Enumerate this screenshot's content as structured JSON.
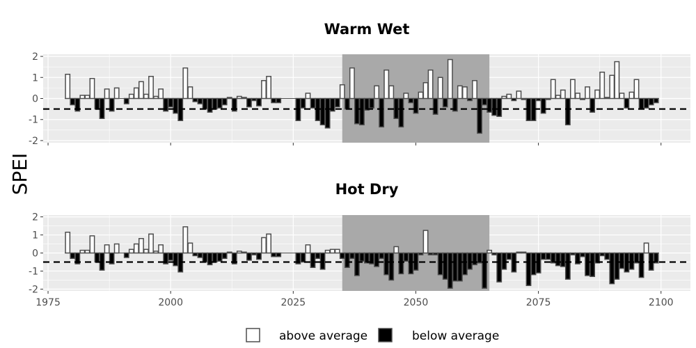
{
  "chart_data": {
    "type": "bar",
    "ylabel": "SPEI",
    "xlim": [
      1974,
      2106
    ],
    "ylim": [
      -2.1,
      2.1
    ],
    "x_ticks": [
      1975,
      2000,
      2025,
      2050,
      2075,
      2100
    ],
    "y_ticks": [
      2,
      1,
      0,
      -1,
      -2
    ],
    "threshold": -0.5,
    "shaded_period": [
      2035,
      2065
    ],
    "legend": {
      "placement": "bottom",
      "entries": [
        {
          "label": "above average",
          "fill": "#ffffff"
        },
        {
          "label": "below average",
          "fill": "#000000"
        }
      ]
    },
    "colors": {
      "panel_bg": "#ebebeb",
      "grid": "#ffffff",
      "shade": "#a9a9a9",
      "above_fill": "#ffffff",
      "below_fill": "#000000",
      "bar_stroke": "#4d4d4d"
    },
    "panels": [
      {
        "title": "Warm Wet",
        "series": [
          {
            "x": [
              1979,
              1980,
              1981,
              1982,
              1983,
              1984,
              1985,
              1986,
              1987,
              1988,
              1989,
              1990,
              1991,
              1992,
              1993,
              1994,
              1995,
              1996,
              1997,
              1998,
              1999,
              2000,
              2001,
              2002,
              2003,
              2004,
              2005,
              2006,
              2007,
              2008,
              2009,
              2010,
              2011,
              2012,
              2013,
              2014,
              2015,
              2016,
              2017,
              2018,
              2019,
              2020,
              2021,
              2022
            ],
            "values": [
              1.15,
              -0.3,
              -0.6,
              0.15,
              0.15,
              0.95,
              -0.5,
              -0.95,
              0.45,
              -0.6,
              0.5,
              0,
              -0.25,
              0.2,
              0.5,
              0.8,
              0.2,
              1.05,
              0.1,
              0.45,
              -0.6,
              -0.4,
              -0.7,
              -1.05,
              1.45,
              0.55,
              -0.15,
              -0.25,
              -0.5,
              -0.65,
              -0.5,
              -0.45,
              -0.3,
              0.05,
              -0.6,
              0.1,
              0.05,
              -0.4,
              -0.1,
              -0.35,
              0.85,
              1.05,
              -0.2,
              -0.2
            ]
          },
          {
            "x": [
              2026,
              2027,
              2028,
              2029,
              2030,
              2031,
              2032,
              2033,
              2034,
              2035,
              2036,
              2037,
              2038,
              2039,
              2040,
              2041,
              2042,
              2043,
              2044,
              2045,
              2046,
              2047,
              2048,
              2049,
              2050,
              2051,
              2052,
              2053,
              2054,
              2055,
              2056,
              2057,
              2058,
              2059,
              2060,
              2061,
              2062,
              2063,
              2064,
              2065,
              2066,
              2067,
              2068,
              2069,
              2070,
              2071,
              2072,
              2073,
              2074,
              2075,
              2076,
              2077,
              2078,
              2079,
              2080,
              2081,
              2082,
              2083,
              2084,
              2085,
              2086,
              2087,
              2088,
              2089,
              2090,
              2091,
              2092,
              2093,
              2094,
              2095,
              2096,
              2097,
              2098,
              2099
            ],
            "values": [
              -1.05,
              -0.45,
              0.25,
              -0.45,
              -1.05,
              -1.25,
              -1.4,
              -0.6,
              -0.4,
              0.65,
              -0.5,
              1.45,
              -1.2,
              -1.25,
              -0.55,
              -0.45,
              0.6,
              -1.35,
              1.35,
              0.6,
              -0.95,
              -1.35,
              0.25,
              -0.2,
              -0.7,
              0.3,
              0.75,
              1.35,
              -0.75,
              1.0,
              -0.4,
              1.85,
              -0.6,
              0.6,
              0.55,
              -0.1,
              0.85,
              -1.65,
              -0.3,
              -0.65,
              -0.8,
              -0.85,
              0.1,
              0.2,
              -0.1,
              0.35,
              -0.05,
              -1.05,
              -1.05,
              -0.1,
              -0.7,
              -0.05,
              0.9,
              0.15,
              0.4,
              -1.25,
              0.9,
              0.25,
              -0.05,
              0.55,
              -0.65,
              0.4,
              1.25,
              0.05,
              1.1,
              1.75,
              0.25,
              -0.45,
              0.3,
              0.9,
              -0.5,
              -0.45,
              -0.3,
              -0.2
            ]
          }
        ]
      },
      {
        "title": "Hot Dry",
        "series": [
          {
            "x": [
              1979,
              1980,
              1981,
              1982,
              1983,
              1984,
              1985,
              1986,
              1987,
              1988,
              1989,
              1990,
              1991,
              1992,
              1993,
              1994,
              1995,
              1996,
              1997,
              1998,
              1999,
              2000,
              2001,
              2002,
              2003,
              2004,
              2005,
              2006,
              2007,
              2008,
              2009,
              2010,
              2011,
              2012,
              2013,
              2014,
              2015,
              2016,
              2017,
              2018,
              2019,
              2020,
              2021,
              2022
            ],
            "values": [
              1.15,
              -0.3,
              -0.6,
              0.15,
              0.15,
              0.95,
              -0.5,
              -0.95,
              0.45,
              -0.6,
              0.5,
              0,
              -0.25,
              0.2,
              0.5,
              0.8,
              0.2,
              1.05,
              0.1,
              0.45,
              -0.6,
              -0.4,
              -0.7,
              -1.05,
              1.45,
              0.55,
              -0.15,
              -0.25,
              -0.5,
              -0.65,
              -0.5,
              -0.45,
              -0.3,
              0.05,
              -0.6,
              0.1,
              0.05,
              -0.4,
              -0.1,
              -0.35,
              0.85,
              1.05,
              -0.2,
              -0.2
            ]
          },
          {
            "x": [
              2026,
              2027,
              2028,
              2029,
              2030,
              2031,
              2032,
              2033,
              2034,
              2035,
              2036,
              2037,
              2038,
              2039,
              2040,
              2041,
              2042,
              2043,
              2044,
              2045,
              2046,
              2047,
              2048,
              2049,
              2050,
              2051,
              2052,
              2053,
              2054,
              2055,
              2056,
              2057,
              2058,
              2059,
              2060,
              2061,
              2062,
              2063,
              2064,
              2065,
              2066,
              2067,
              2068,
              2069,
              2070,
              2071,
              2072,
              2073,
              2074,
              2075,
              2076,
              2077,
              2078,
              2079,
              2080,
              2081,
              2082,
              2083,
              2084,
              2085,
              2086,
              2087,
              2088,
              2089,
              2090,
              2091,
              2092,
              2093,
              2094,
              2095,
              2096,
              2097,
              2098,
              2099
            ],
            "values": [
              -0.6,
              -0.5,
              0.45,
              -0.8,
              -0.3,
              -0.9,
              0.15,
              0.2,
              0.2,
              -0.3,
              -0.8,
              -0.3,
              -1.25,
              -0.45,
              -0.55,
              -0.6,
              -0.75,
              -0.3,
              -1.2,
              -1.5,
              0.35,
              -1.15,
              -0.45,
              -1.15,
              -0.95,
              -0.1,
              1.25,
              -0.1,
              -0.1,
              -1.2,
              -1.45,
              -1.95,
              -1.55,
              -1.55,
              -1.2,
              -0.9,
              -0.65,
              -0.55,
              -1.95,
              0.15,
              -0.1,
              -1.6,
              -0.9,
              -0.35,
              -1.05,
              0.05,
              0.05,
              -1.8,
              -1.2,
              -1.1,
              -0.35,
              -0.35,
              -0.55,
              -0.7,
              -0.75,
              -1.45,
              -0.1,
              -0.6,
              -0.2,
              -1.25,
              -1.3,
              -0.55,
              -0.15,
              -0.35,
              -1.7,
              -1.45,
              -0.85,
              -1.05,
              -0.9,
              -0.55,
              -1.35,
              0.55,
              -0.95,
              -0.55
            ]
          }
        ]
      }
    ]
  }
}
